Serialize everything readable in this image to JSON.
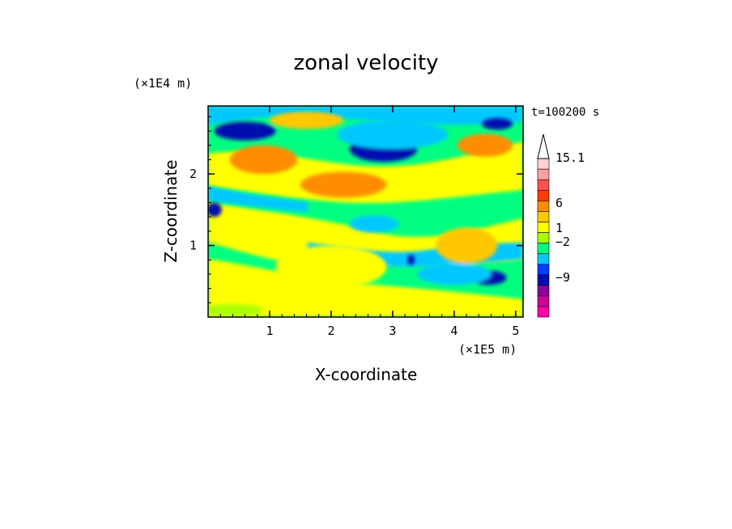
{
  "chart_data": {
    "type": "heatmap",
    "title": "zonal velocity",
    "xlabel": "X-coordinate",
    "ylabel": "Z-coordinate",
    "x_unit_label": "(×1E5 m)",
    "y_unit_label": "(×1E4 m)",
    "annotation": "t=100200 s",
    "xlim": [
      0,
      5.12
    ],
    "ylim": [
      0,
      2.95
    ],
    "x_ticks": [
      "1",
      "2",
      "3",
      "4",
      "5"
    ],
    "y_ticks": [
      "1",
      "2"
    ],
    "colorbar_labels": [
      "15.1",
      "6",
      "1",
      "−2",
      "−9"
    ],
    "colorbar_colors": [
      "#ff00aa",
      "#d0009a",
      "#8c00a0",
      "#0010b0",
      "#0040ff",
      "#00c8ff",
      "#00ff80",
      "#aaff00",
      "#ffff00",
      "#ffc800",
      "#ff8c00",
      "#ff3c00",
      "#ff5050",
      "#ffa0a0",
      "#ffd0d0"
    ],
    "blobs": [
      {
        "cx": 0.6,
        "cy": 2.6,
        "rx": 0.5,
        "ry": 0.13,
        "color": "#0010b0"
      },
      {
        "cx": 2.85,
        "cy": 2.35,
        "rx": 0.55,
        "ry": 0.18,
        "color": "#0010b0"
      },
      {
        "cx": 4.7,
        "cy": 2.7,
        "rx": 0.25,
        "ry": 0.08,
        "color": "#0010b0"
      },
      {
        "cx": 4.55,
        "cy": 0.55,
        "rx": 0.3,
        "ry": 0.1,
        "color": "#0010b0"
      },
      {
        "cx": 0.1,
        "cy": 1.5,
        "rx": 0.12,
        "ry": 0.1,
        "color": "#0010b0"
      },
      {
        "cx": 3.3,
        "cy": 0.8,
        "rx": 0.06,
        "ry": 0.07,
        "color": "#0010b0"
      },
      {
        "cx": 0.9,
        "cy": 2.2,
        "rx": 0.55,
        "ry": 0.2,
        "color": "#ff8c00"
      },
      {
        "cx": 2.2,
        "cy": 1.85,
        "rx": 0.7,
        "ry": 0.18,
        "color": "#ff8c00"
      },
      {
        "cx": 4.5,
        "cy": 2.4,
        "rx": 0.45,
        "ry": 0.16,
        "color": "#ff8c00"
      },
      {
        "cx": 1.6,
        "cy": 2.75,
        "rx": 0.6,
        "ry": 0.12,
        "color": "#ffc800"
      },
      {
        "cx": 4.2,
        "cy": 1.0,
        "rx": 0.5,
        "ry": 0.25,
        "color": "#ffc800"
      },
      {
        "cx": 2.0,
        "cy": 0.7,
        "rx": 0.9,
        "ry": 0.3,
        "color": "#ffff00"
      },
      {
        "cx": 1.1,
        "cy": 1.2,
        "rx": 0.6,
        "ry": 0.2,
        "color": "#ffff00"
      },
      {
        "cx": 2.7,
        "cy": 1.3,
        "rx": 0.4,
        "ry": 0.12,
        "color": "#00c8ff"
      },
      {
        "cx": 4.0,
        "cy": 0.6,
        "rx": 0.6,
        "ry": 0.15,
        "color": "#00c8ff"
      },
      {
        "cx": 3.0,
        "cy": 2.55,
        "rx": 0.9,
        "ry": 0.2,
        "color": "#00c8ff"
      },
      {
        "cx": 0.4,
        "cy": 0.1,
        "rx": 0.5,
        "ry": 0.08,
        "color": "#aaff00"
      },
      {
        "cx": 3.5,
        "cy": 0.2,
        "rx": 0.8,
        "ry": 0.1,
        "color": "#ffff00"
      }
    ]
  }
}
